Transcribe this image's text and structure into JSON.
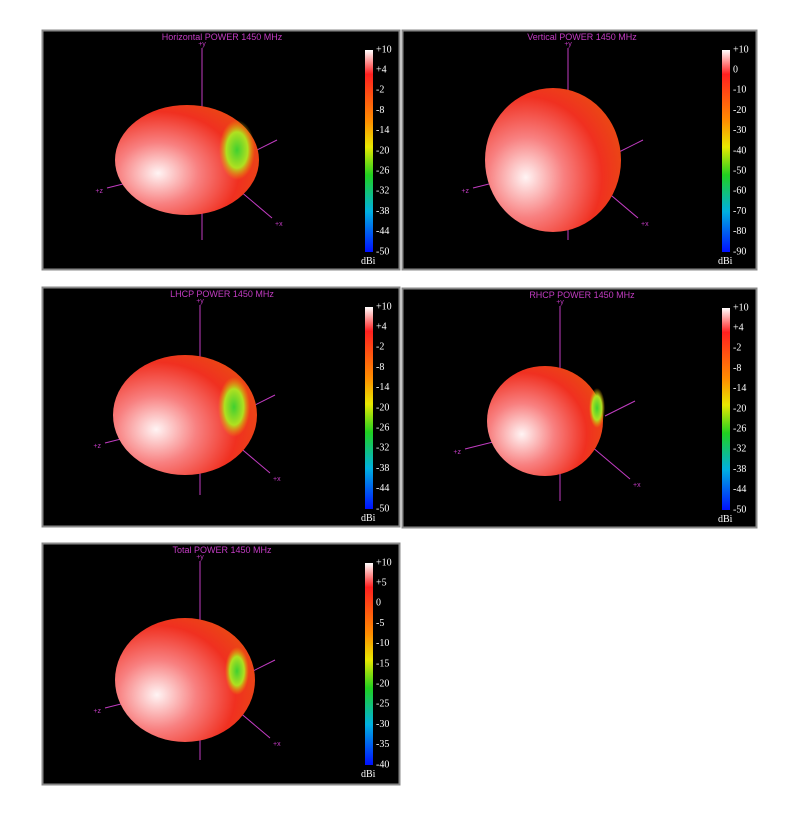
{
  "panels": [
    {
      "title": "Horizontal POWER 1450  MHz",
      "colorbar": [
        "+10",
        "+4",
        "-2",
        "-8",
        "-14",
        "-20",
        "-26",
        "-32",
        "-38",
        "-44",
        "-50"
      ],
      "unit": "dBi",
      "axes": [
        "+y",
        "+z",
        "+x"
      ]
    },
    {
      "title": "Vertical POWER 1450  MHz",
      "colorbar": [
        "+10",
        "0",
        "-10",
        "-20",
        "-30",
        "-40",
        "-50",
        "-60",
        "-70",
        "-80",
        "-90"
      ],
      "unit": "dBi",
      "axes": [
        "+y",
        "+z",
        "+x"
      ]
    },
    {
      "title": "LHCP POWER 1450  MHz",
      "colorbar": [
        "+10",
        "+4",
        "-2",
        "-8",
        "-14",
        "-20",
        "-26",
        "-32",
        "-38",
        "-44",
        "-50"
      ],
      "unit": "dBi",
      "axes": [
        "+y",
        "+z",
        "+x"
      ]
    },
    {
      "title": "RHCP POWER 1450  MHz",
      "colorbar": [
        "+10",
        "+4",
        "-2",
        "-8",
        "-14",
        "-20",
        "-26",
        "-32",
        "-38",
        "-44",
        "-50"
      ],
      "unit": "dBi",
      "axes": [
        "+y",
        "+z",
        "+x"
      ]
    },
    {
      "title": "Total POWER 1450  MHz",
      "colorbar": [
        "+10",
        "+5",
        "0",
        "-5",
        "-10",
        "-15",
        "-20",
        "-25",
        "-30",
        "-35",
        "-40"
      ],
      "unit": "dBi",
      "axes": [
        "+y",
        "+z",
        "+x"
      ]
    }
  ]
}
